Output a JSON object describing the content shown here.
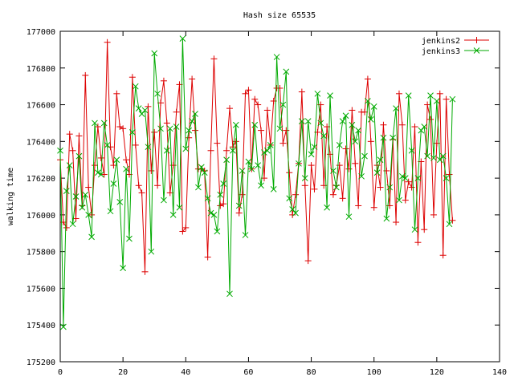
{
  "chart_data": {
    "type": "line",
    "title": "Hash size 65535",
    "xlabel": "",
    "ylabel": "walking time",
    "xlim": [
      0,
      140
    ],
    "ylim": [
      175200,
      177000
    ],
    "xticks": [
      "0",
      "20",
      "40",
      "60",
      "80",
      "100",
      "120",
      "140"
    ],
    "yticks": [
      "175200",
      "175400",
      "175600",
      "175800",
      "176000",
      "176200",
      "176400",
      "176600",
      "176800",
      "177000"
    ],
    "legend_position": "top-right",
    "grid": false,
    "series": [
      {
        "name": "jenkins2",
        "color": "#dd0000",
        "marker": "plus",
        "x": [
          0,
          1,
          2,
          3,
          4,
          5,
          6,
          7,
          8,
          9,
          10,
          11,
          12,
          13,
          14,
          15,
          16,
          17,
          18,
          19,
          20,
          21,
          22,
          23,
          24,
          25,
          26,
          27,
          28,
          29,
          30,
          31,
          32,
          33,
          34,
          35,
          36,
          37,
          38,
          39,
          40,
          41,
          42,
          43,
          44,
          45,
          46,
          47,
          48,
          49,
          50,
          51,
          52,
          53,
          54,
          55,
          56,
          57,
          58,
          59,
          60,
          61,
          62,
          63,
          64,
          65,
          66,
          67,
          68,
          69,
          70,
          71,
          72,
          73,
          74,
          75,
          76,
          77,
          78,
          79,
          80,
          81,
          82,
          83,
          84,
          85,
          86,
          87,
          88,
          89,
          90,
          91,
          92,
          93,
          94,
          95,
          96,
          97,
          98,
          99,
          100,
          101,
          102,
          103,
          104,
          105,
          106,
          107,
          108,
          109,
          110,
          111,
          112,
          113,
          114,
          115,
          116,
          117,
          118,
          119,
          120,
          121,
          122,
          123,
          124,
          125
        ],
        "y": [
          176300,
          175960,
          175930,
          176440,
          176350,
          175980,
          176430,
          176050,
          176760,
          176150,
          176000,
          176270,
          176480,
          176310,
          176220,
          176940,
          176370,
          176270,
          176660,
          176480,
          176470,
          176300,
          176220,
          176750,
          176380,
          176160,
          176120,
          175690,
          176590,
          176240,
          176450,
          176160,
          176610,
          176730,
          176500,
          176120,
          176270,
          176560,
          176710,
          175910,
          175930,
          176420,
          176740,
          176460,
          176250,
          176250,
          176240,
          175770,
          176350,
          176850,
          176390,
          176050,
          176060,
          176350,
          176580,
          176370,
          176400,
          176010,
          176110,
          176660,
          176680,
          176250,
          176630,
          176600,
          176460,
          176200,
          176570,
          176380,
          176620,
          176690,
          176690,
          176390,
          176460,
          176230,
          176000,
          176110,
          176280,
          176670,
          176160,
          175750,
          176270,
          176140,
          176450,
          176600,
          176160,
          176480,
          176330,
          176110,
          176160,
          176270,
          176090,
          176360,
          176250,
          176570,
          176280,
          176050,
          176560,
          176560,
          176740,
          176400,
          176040,
          176270,
          176150,
          176490,
          176240,
          176050,
          176410,
          175960,
          176660,
          176490,
          176080,
          176180,
          176150,
          176480,
          175850,
          176290,
          175920,
          176600,
          176520,
          176000,
          176390,
          176660,
          175780,
          176630,
          176220,
          175970
        ]
      },
      {
        "name": "jenkins3",
        "color": "#00aa00",
        "marker": "cross",
        "x": [
          0,
          1,
          2,
          3,
          4,
          5,
          6,
          7,
          8,
          9,
          10,
          11,
          12,
          13,
          14,
          15,
          16,
          17,
          18,
          19,
          20,
          21,
          22,
          23,
          24,
          25,
          26,
          27,
          28,
          29,
          30,
          31,
          32,
          33,
          34,
          35,
          36,
          37,
          38,
          39,
          40,
          41,
          42,
          43,
          44,
          45,
          46,
          47,
          48,
          49,
          50,
          51,
          52,
          53,
          54,
          55,
          56,
          57,
          58,
          59,
          60,
          61,
          62,
          63,
          64,
          65,
          66,
          67,
          68,
          69,
          70,
          71,
          72,
          73,
          74,
          75,
          76,
          77,
          78,
          79,
          80,
          81,
          82,
          83,
          84,
          85,
          86,
          87,
          88,
          89,
          90,
          91,
          92,
          93,
          94,
          95,
          96,
          97,
          98,
          99,
          100,
          101,
          102,
          103,
          104,
          105,
          106,
          107,
          108,
          109,
          110,
          111,
          112,
          113,
          114,
          115,
          116,
          117,
          118,
          119,
          120,
          121,
          122,
          123,
          124,
          125
        ],
        "y": [
          176350,
          175390,
          176130,
          176270,
          175950,
          176100,
          176320,
          176040,
          176110,
          176000,
          175880,
          176500,
          176230,
          176220,
          176500,
          176380,
          176020,
          176170,
          176300,
          176070,
          175710,
          176250,
          175870,
          176450,
          176700,
          176580,
          176550,
          176570,
          176370,
          175800,
          176880,
          176660,
          176470,
          176080,
          176350,
          176470,
          176000,
          176480,
          176040,
          176960,
          176360,
          176460,
          176510,
          176550,
          176150,
          176260,
          176230,
          176090,
          176010,
          176000,
          175910,
          176110,
          176170,
          176300,
          175570,
          176350,
          176490,
          176050,
          176240,
          175890,
          176290,
          176250,
          176490,
          176270,
          176160,
          176340,
          176350,
          176380,
          176140,
          176860,
          176470,
          176600,
          176780,
          176090,
          176030,
          176010,
          176280,
          176510,
          176200,
          176510,
          176330,
          176370,
          176660,
          176500,
          176430,
          176040,
          176650,
          176240,
          176150,
          176380,
          176510,
          176540,
          175990,
          176490,
          176400,
          176460,
          176210,
          176320,
          176620,
          176520,
          176590,
          176230,
          176300,
          176420,
          175980,
          176150,
          176420,
          176580,
          176080,
          176210,
          176200,
          176650,
          176350,
          175920,
          176200,
          176460,
          176480,
          176320,
          176650,
          176310,
          176620,
          176300,
          176320,
          176200,
          175950,
          176630
        ]
      }
    ]
  }
}
